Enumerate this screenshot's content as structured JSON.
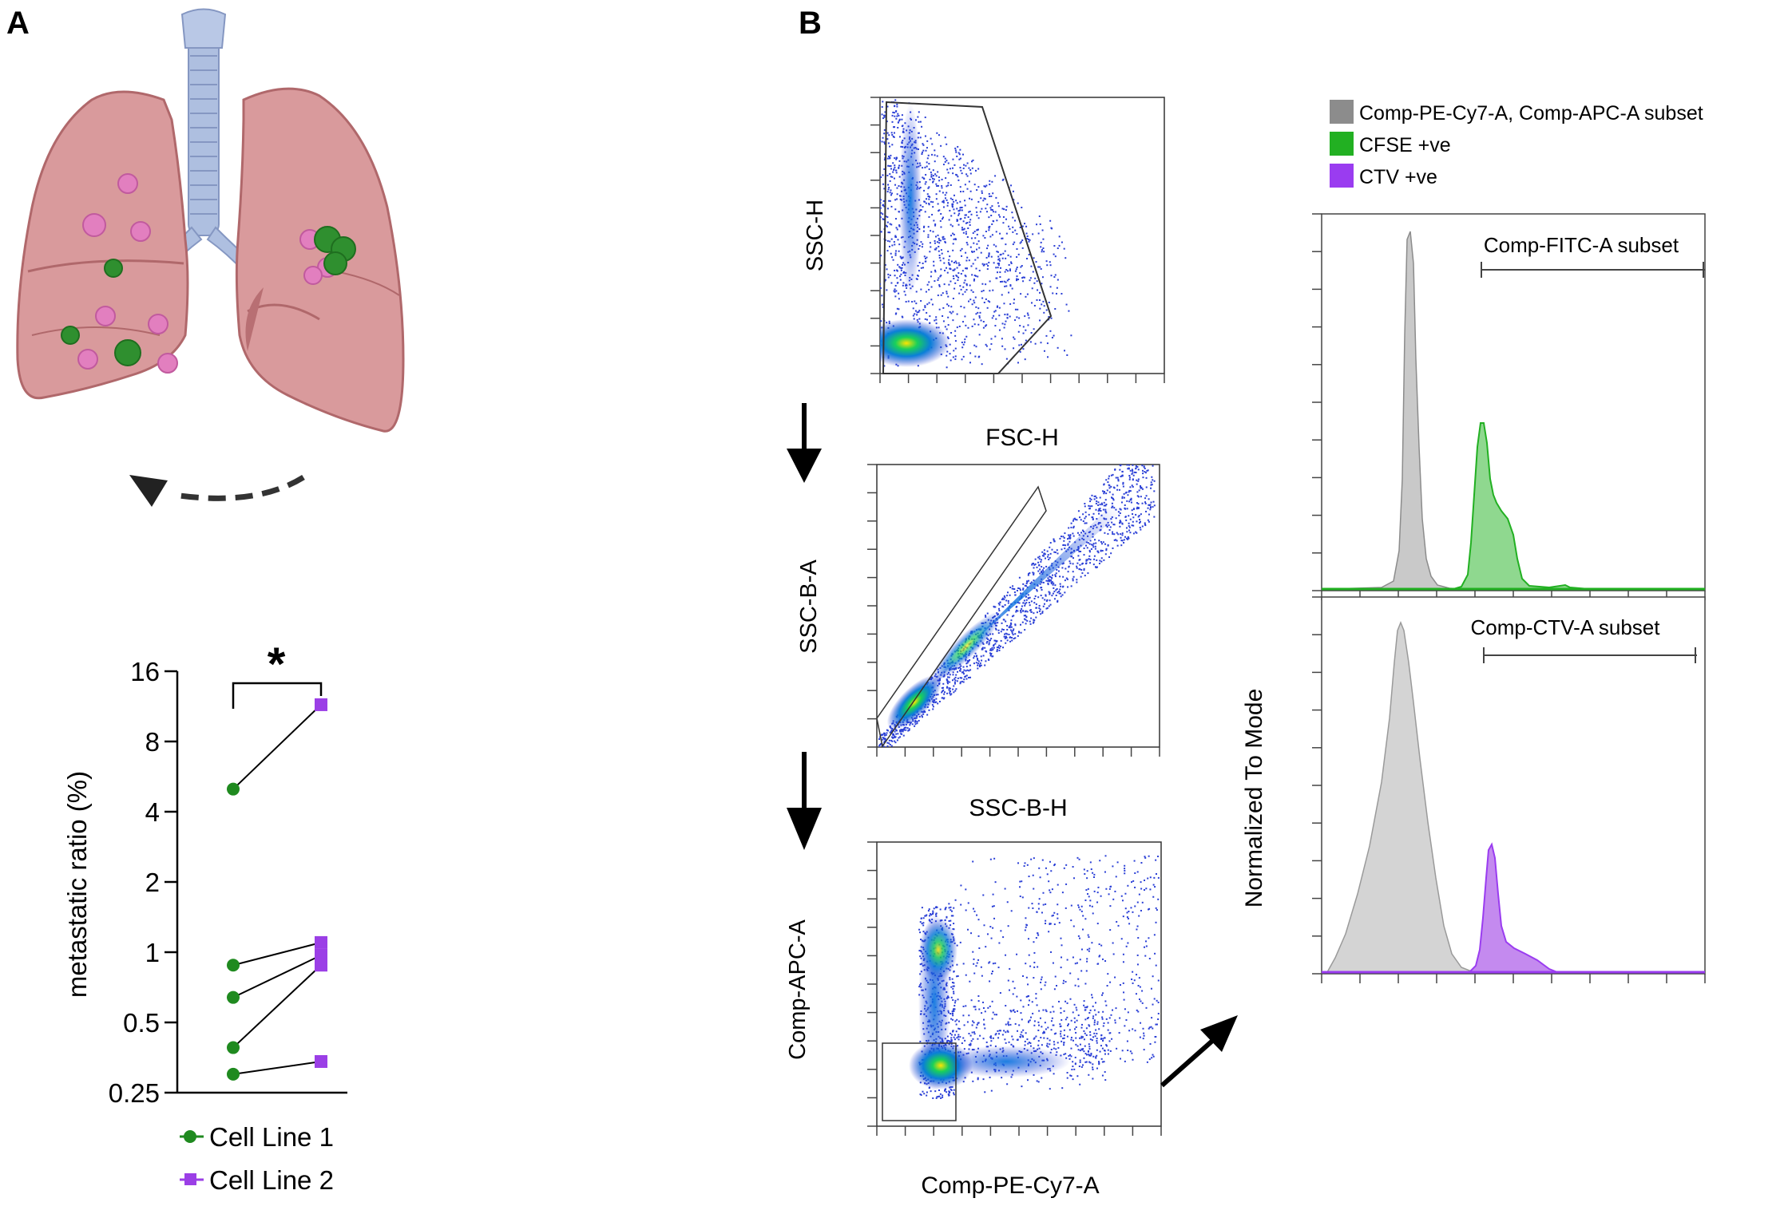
{
  "panels": {
    "a": "A",
    "b": "B"
  },
  "chart_data": [
    {
      "type": "scatter",
      "subtype": "paired-dot",
      "title": "",
      "ylabel": "metastatic ratio (%)",
      "yscale": "log2",
      "ylim": [
        0.25,
        16
      ],
      "yticks": [
        "16",
        "8",
        "4",
        "2",
        "1",
        "0.5",
        "0.25"
      ],
      "significance": "*",
      "series": [
        {
          "name": "Cell Line 1",
          "color": "#1f8a1f",
          "marker": "circle",
          "values": [
            5.0,
            0.88,
            0.64,
            0.39,
            0.3
          ]
        },
        {
          "name": "Cell Line 2",
          "color": "#9b3fe6",
          "marker": "square",
          "values": [
            11.5,
            1.1,
            0.97,
            0.88,
            0.34
          ]
        }
      ],
      "legend": [
        "Cell Line 1",
        "Cell Line 2"
      ]
    },
    {
      "type": "scatter",
      "subtype": "flow-density",
      "title": "",
      "plots": [
        {
          "ylabel": "SSC-H",
          "xlabel": "FSC-H"
        },
        {
          "ylabel": "SSC-B-A",
          "xlabel": "SSC-B-H"
        },
        {
          "ylabel": "Comp-APC-A",
          "xlabel": "Comp-PE-Cy7-A"
        }
      ]
    },
    {
      "type": "area",
      "subtype": "histogram",
      "ylabel": "Normalized To Mode",
      "legend": [
        {
          "label": "Comp-PE-Cy7-A, Comp-APC-A subset",
          "color": "#8c8c8c"
        },
        {
          "label": "CFSE +ve",
          "color": "#22b022"
        },
        {
          "label": "CTV +ve",
          "color": "#9a3cf0"
        }
      ],
      "plots": [
        {
          "subset_label": "Comp-FITC-A subset"
        },
        {
          "subset_label": "Comp-CTV-A subset"
        }
      ]
    }
  ]
}
